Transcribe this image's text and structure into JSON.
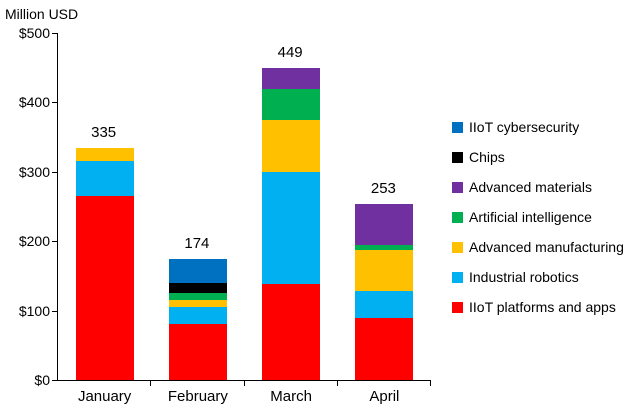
{
  "chart_data": {
    "type": "bar",
    "stacked": true,
    "title": "",
    "axis_note": "Million USD",
    "categories": [
      "January",
      "February",
      "March",
      "April"
    ],
    "totals": [
      335,
      174,
      449,
      253
    ],
    "series": [
      {
        "name": "IIoT platforms and apps",
        "color": "#ff0000",
        "values": [
          265,
          80,
          138,
          90
        ]
      },
      {
        "name": "Industrial robotics",
        "color": "#00b0f0",
        "values": [
          50,
          25,
          162,
          38
        ]
      },
      {
        "name": "Advanced manufacturing",
        "color": "#ffc000",
        "values": [
          20,
          10,
          75,
          60
        ]
      },
      {
        "name": "Artificial intelligence",
        "color": "#00b050",
        "values": [
          0,
          10,
          45,
          7
        ]
      },
      {
        "name": "Advanced materials",
        "color": "#7030a0",
        "values": [
          0,
          0,
          29,
          58
        ]
      },
      {
        "name": "Chips",
        "color": "#000000",
        "values": [
          0,
          15,
          0,
          0
        ]
      },
      {
        "name": "IIoT cybersecurity",
        "color": "#0070c0",
        "values": [
          0,
          34,
          0,
          0
        ]
      }
    ],
    "legend": [
      {
        "label": "IIoT cybersecurity",
        "color": "#0070c0"
      },
      {
        "label": "Chips",
        "color": "#000000"
      },
      {
        "label": "Advanced materials",
        "color": "#7030a0"
      },
      {
        "label": "Artificial intelligence",
        "color": "#00b050"
      },
      {
        "label": "Advanced manufacturing",
        "color": "#ffc000"
      },
      {
        "label": "Industrial robotics",
        "color": "#00b0f0"
      },
      {
        "label": "IIoT platforms and apps",
        "color": "#ff0000"
      }
    ],
    "ylim": [
      0,
      500
    ],
    "yticks": [
      {
        "value": 0,
        "label": "$0"
      },
      {
        "value": 100,
        "label": "$100"
      },
      {
        "value": 200,
        "label": "$200"
      },
      {
        "value": 300,
        "label": "$300"
      },
      {
        "value": 400,
        "label": "$400"
      },
      {
        "value": 500,
        "label": "$500"
      }
    ],
    "grid": false,
    "legend_position": "right"
  }
}
